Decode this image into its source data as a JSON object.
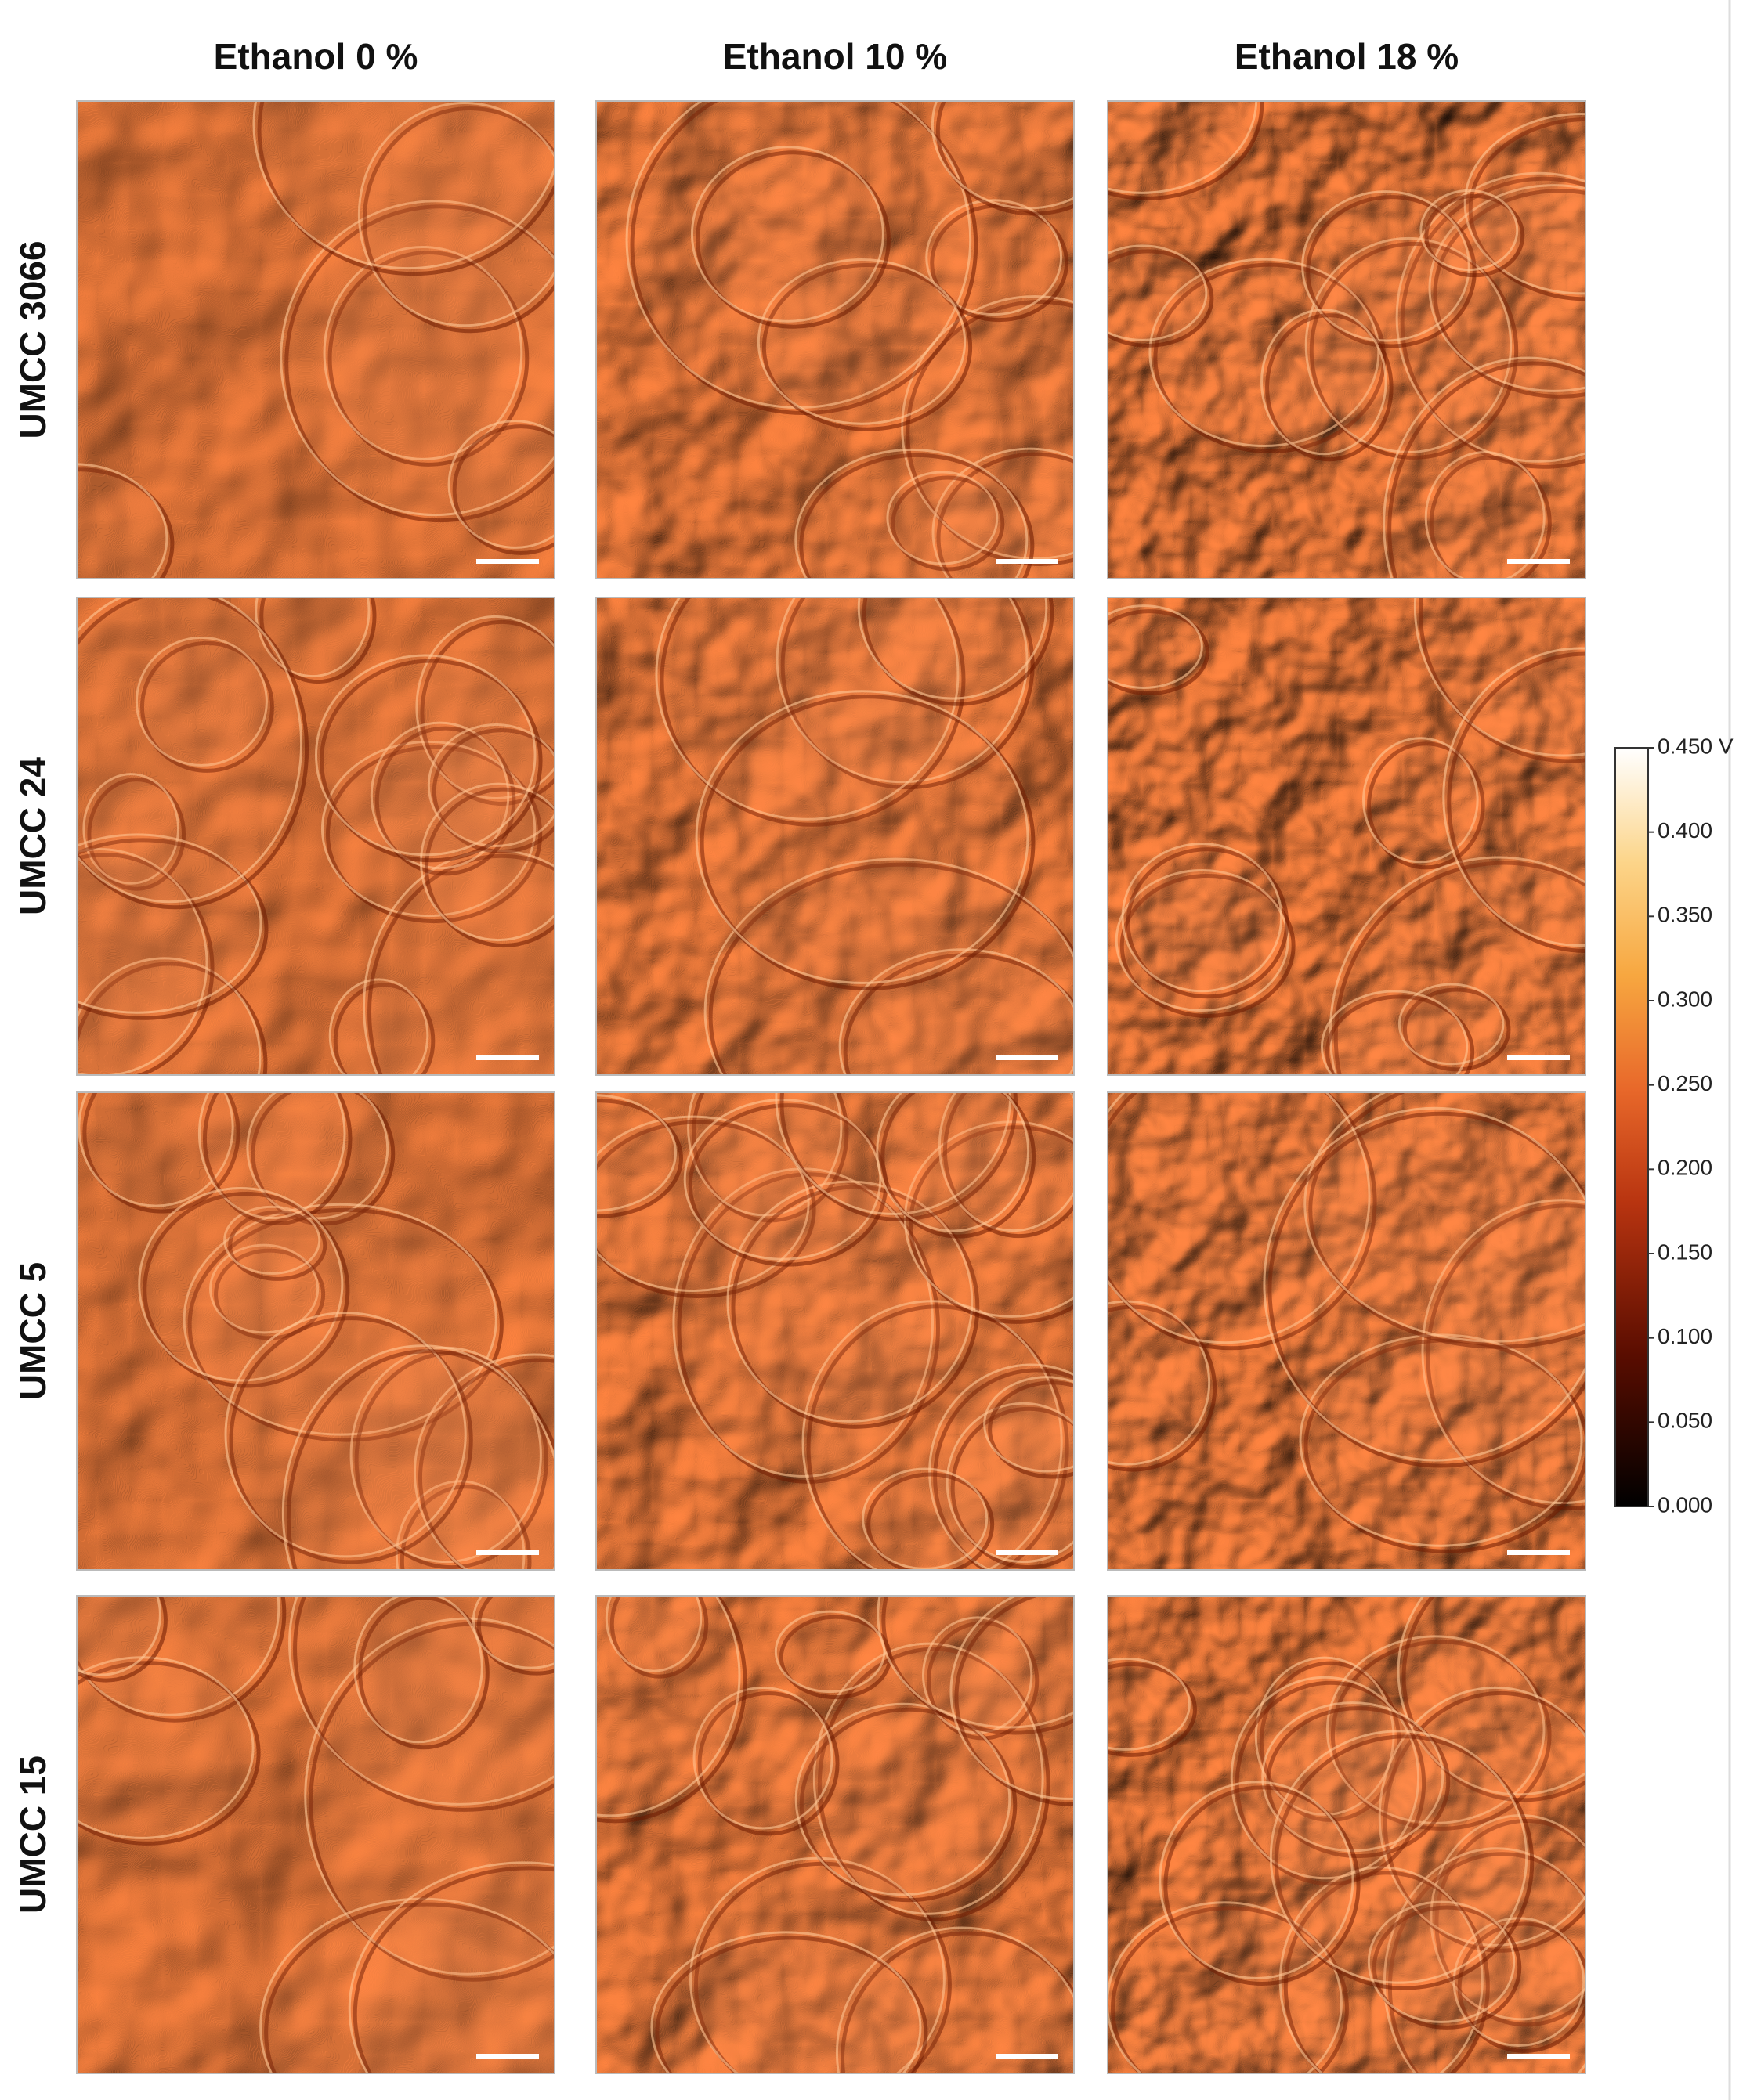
{
  "columns": [
    "Ethanol 0 %",
    "Ethanol 10 %",
    "Ethanol 18 %"
  ],
  "rows": [
    "UMCC 3066",
    "UMCC 24",
    "UMCC 5",
    "UMCC 15"
  ],
  "colorbar": {
    "lim": [
      0,
      0.45
    ],
    "ticks": [
      {
        "value": 0,
        "label": "0.000"
      },
      {
        "value": 0.05,
        "label": "0.050"
      },
      {
        "value": 0.1,
        "label": "0.100"
      },
      {
        "value": 0.15,
        "label": "0.150"
      },
      {
        "value": 0.2,
        "label": "0.200"
      },
      {
        "value": 0.25,
        "label": "0.250"
      },
      {
        "value": 0.3,
        "label": "0.300"
      },
      {
        "value": 0.35,
        "label": "0.350"
      },
      {
        "value": 0.4,
        "label": "0.400"
      },
      {
        "value": 0.45,
        "label": "0.450 V"
      }
    ]
  }
}
